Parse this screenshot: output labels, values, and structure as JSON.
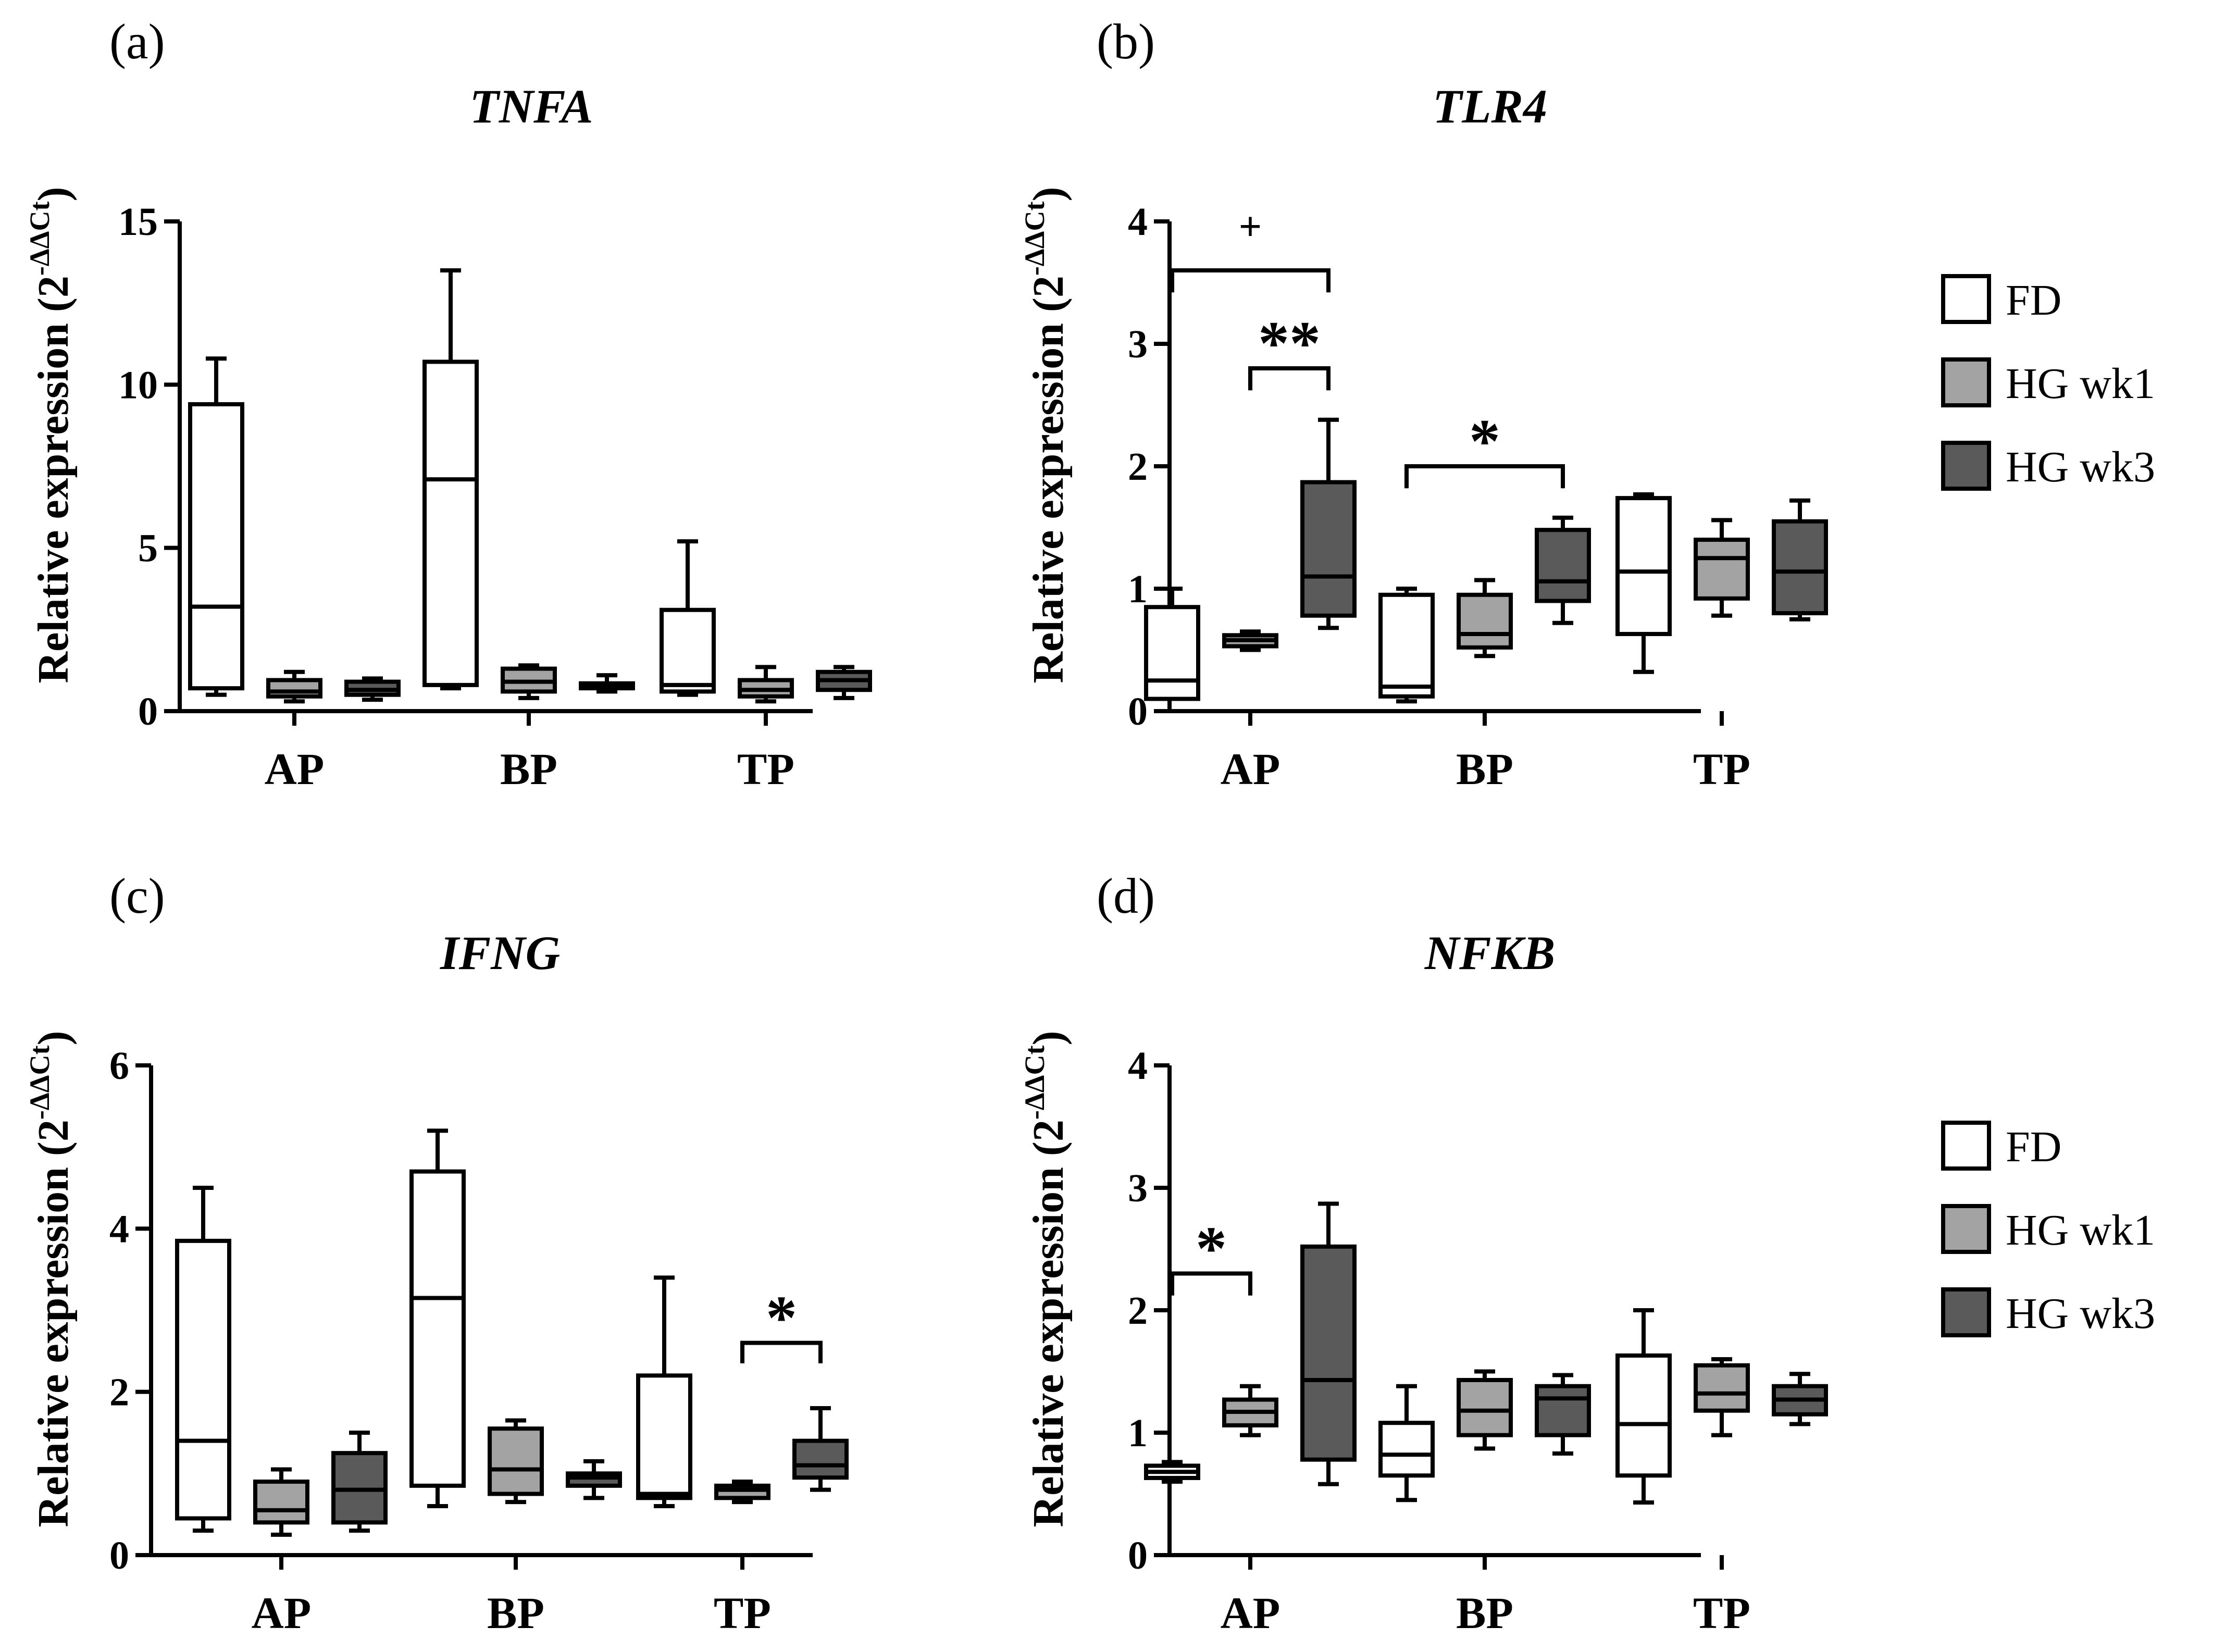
{
  "figure": {
    "legend_labels": [
      "FD",
      "HG wk1",
      "HG wk3"
    ],
    "group_colors": {
      "FD": "#ffffff",
      "HG wk1": "#a3a3a3",
      "HG wk3": "#5a5a5a"
    },
    "stroke_color": "#000000"
  },
  "chart_data": [
    {
      "panel": "(a)",
      "type": "box",
      "title": "TNFA",
      "ylabel": "Relative expression (2",
      "ylabel_sup": "-ΔΔCt",
      "ylabel_close": ")",
      "ylim": [
        0,
        15
      ],
      "yticks": [
        0,
        5,
        10,
        15
      ],
      "categories": [
        "AP",
        "BP",
        "TP"
      ],
      "legend": false,
      "series": [
        {
          "name": "FD",
          "boxes": [
            {
              "min": 0.5,
              "q1": 0.7,
              "median": 3.2,
              "q3": 9.4,
              "max": 10.8
            },
            {
              "min": 0.7,
              "q1": 0.8,
              "median": 7.1,
              "q3": 10.7,
              "max": 13.5
            },
            {
              "min": 0.5,
              "q1": 0.6,
              "median": 0.8,
              "q3": 3.1,
              "max": 5.2
            }
          ]
        },
        {
          "name": "HG wk1",
          "boxes": [
            {
              "min": 0.3,
              "q1": 0.45,
              "median": 0.6,
              "q3": 0.95,
              "max": 1.2
            },
            {
              "min": 0.4,
              "q1": 0.6,
              "median": 0.9,
              "q3": 1.3,
              "max": 1.4
            },
            {
              "min": 0.3,
              "q1": 0.45,
              "median": 0.65,
              "q3": 0.95,
              "max": 1.35
            }
          ]
        },
        {
          "name": "HG wk3",
          "boxes": [
            {
              "min": 0.35,
              "q1": 0.5,
              "median": 0.65,
              "q3": 0.9,
              "max": 1.0
            },
            {
              "min": 0.6,
              "q1": 0.7,
              "median": 0.8,
              "q3": 0.85,
              "max": 1.1
            },
            {
              "min": 0.4,
              "q1": 0.65,
              "median": 0.95,
              "q3": 1.2,
              "max": 1.35
            }
          ]
        }
      ],
      "annotations": []
    },
    {
      "panel": "(b)",
      "type": "box",
      "title": "TLR4",
      "ylabel": "Relative expression (2",
      "ylabel_sup": "-ΔΔCt",
      "ylabel_close": ")",
      "ylim": [
        0,
        4
      ],
      "yticks": [
        0,
        1,
        2,
        3,
        4
      ],
      "categories": [
        "AP",
        "BP",
        "TP"
      ],
      "legend": true,
      "series": [
        {
          "name": "FD",
          "boxes": [
            {
              "min": 0.1,
              "q1": 0.1,
              "median": 0.25,
              "q3": 0.85,
              "max": 1.0
            },
            {
              "min": 0.08,
              "q1": 0.12,
              "median": 0.2,
              "q3": 0.95,
              "max": 1.0
            },
            {
              "min": 0.32,
              "q1": 0.63,
              "median": 1.14,
              "q3": 1.74,
              "max": 1.77
            }
          ]
        },
        {
          "name": "HG wk1",
          "boxes": [
            {
              "min": 0.5,
              "q1": 0.53,
              "median": 0.58,
              "q3": 0.62,
              "max": 0.65
            },
            {
              "min": 0.45,
              "q1": 0.52,
              "median": 0.63,
              "q3": 0.95,
              "max": 1.07
            },
            {
              "min": 0.78,
              "q1": 0.92,
              "median": 1.25,
              "q3": 1.4,
              "max": 1.56
            }
          ]
        },
        {
          "name": "HG wk3",
          "boxes": [
            {
              "min": 0.68,
              "q1": 0.78,
              "median": 1.1,
              "q3": 1.87,
              "max": 2.38
            },
            {
              "min": 0.72,
              "q1": 0.9,
              "median": 1.06,
              "q3": 1.48,
              "max": 1.58
            },
            {
              "min": 0.75,
              "q1": 0.8,
              "median": 1.14,
              "q3": 1.55,
              "max": 1.72
            }
          ]
        }
      ],
      "annotations": [
        {
          "label": "+",
          "category": 0,
          "from": 0,
          "to": 2,
          "y": 3.6,
          "drop": 0.18,
          "style": "plus"
        },
        {
          "label": "**",
          "category": 0,
          "from": 1,
          "to": 2,
          "y": 2.8,
          "drop": 0.18,
          "style": "star"
        },
        {
          "label": "*",
          "from_category": 1,
          "to_category": 1,
          "from": 0,
          "to": 2,
          "y": 2.0,
          "drop": 0.18,
          "style": "star"
        }
      ]
    },
    {
      "panel": "(c)",
      "type": "box",
      "title": "IFNG",
      "ylabel": "Relative expression (2",
      "ylabel_sup": "-ΔΔCt",
      "ylabel_close": ")",
      "ylim": [
        0,
        6
      ],
      "yticks": [
        0,
        2,
        4,
        6
      ],
      "categories": [
        "AP",
        "BP",
        "TP"
      ],
      "legend": false,
      "series": [
        {
          "name": "FD",
          "boxes": [
            {
              "min": 0.3,
              "q1": 0.45,
              "median": 1.4,
              "q3": 3.85,
              "max": 4.5
            },
            {
              "min": 0.6,
              "q1": 0.85,
              "median": 3.15,
              "q3": 4.7,
              "max": 5.2
            },
            {
              "min": 0.6,
              "q1": 0.7,
              "median": 0.75,
              "q3": 2.2,
              "max": 3.4
            }
          ]
        },
        {
          "name": "HG wk1",
          "boxes": [
            {
              "min": 0.25,
              "q1": 0.4,
              "median": 0.55,
              "q3": 0.9,
              "max": 1.05
            },
            {
              "min": 0.65,
              "q1": 0.75,
              "median": 1.05,
              "q3": 1.55,
              "max": 1.65
            },
            {
              "min": 0.65,
              "q1": 0.7,
              "median": 0.8,
              "q3": 0.85,
              "max": 0.9
            }
          ]
        },
        {
          "name": "HG wk3",
          "boxes": [
            {
              "min": 0.3,
              "q1": 0.4,
              "median": 0.8,
              "q3": 1.25,
              "max": 1.5
            },
            {
              "min": 0.7,
              "q1": 0.85,
              "median": 0.95,
              "q3": 1.0,
              "max": 1.15
            },
            {
              "min": 0.8,
              "q1": 0.95,
              "median": 1.1,
              "q3": 1.4,
              "max": 1.8
            }
          ]
        }
      ],
      "annotations": [
        {
          "label": "*",
          "from_category": 2,
          "to_category": 2,
          "from": 1,
          "to": 2,
          "y": 2.6,
          "drop": 0.25,
          "style": "star"
        }
      ]
    },
    {
      "panel": "(d)",
      "type": "box",
      "title": "NFKB",
      "ylabel": "Relative expression (2",
      "ylabel_sup": "-ΔΔCt",
      "ylabel_close": ")",
      "ylim": [
        0,
        4
      ],
      "yticks": [
        0,
        1,
        2,
        3,
        4
      ],
      "categories": [
        "AP",
        "BP",
        "TP"
      ],
      "legend": true,
      "series": [
        {
          "name": "FD",
          "boxes": [
            {
              "min": 0.6,
              "q1": 0.63,
              "median": 0.68,
              "q3": 0.73,
              "max": 0.76
            },
            {
              "min": 0.45,
              "q1": 0.65,
              "median": 0.82,
              "q3": 1.08,
              "max": 1.38
            },
            {
              "min": 0.43,
              "q1": 0.65,
              "median": 1.07,
              "q3": 1.63,
              "max": 2.0
            }
          ]
        },
        {
          "name": "HG wk1",
          "boxes": [
            {
              "min": 0.98,
              "q1": 1.06,
              "median": 1.17,
              "q3": 1.27,
              "max": 1.38
            },
            {
              "min": 0.87,
              "q1": 0.98,
              "median": 1.18,
              "q3": 1.43,
              "max": 1.5
            },
            {
              "min": 0.98,
              "q1": 1.18,
              "median": 1.32,
              "q3": 1.55,
              "max": 1.6
            }
          ]
        },
        {
          "name": "HG wk3",
          "boxes": [
            {
              "min": 0.58,
              "q1": 0.78,
              "median": 1.43,
              "q3": 2.52,
              "max": 2.87
            },
            {
              "min": 0.83,
              "q1": 0.98,
              "median": 1.28,
              "q3": 1.38,
              "max": 1.47
            },
            {
              "min": 1.07,
              "q1": 1.15,
              "median": 1.27,
              "q3": 1.38,
              "max": 1.48
            }
          ]
        }
      ],
      "annotations": [
        {
          "label": "*",
          "category": 0,
          "from": 0,
          "to": 1,
          "y": 2.3,
          "drop": 0.18,
          "style": "star"
        }
      ]
    }
  ]
}
